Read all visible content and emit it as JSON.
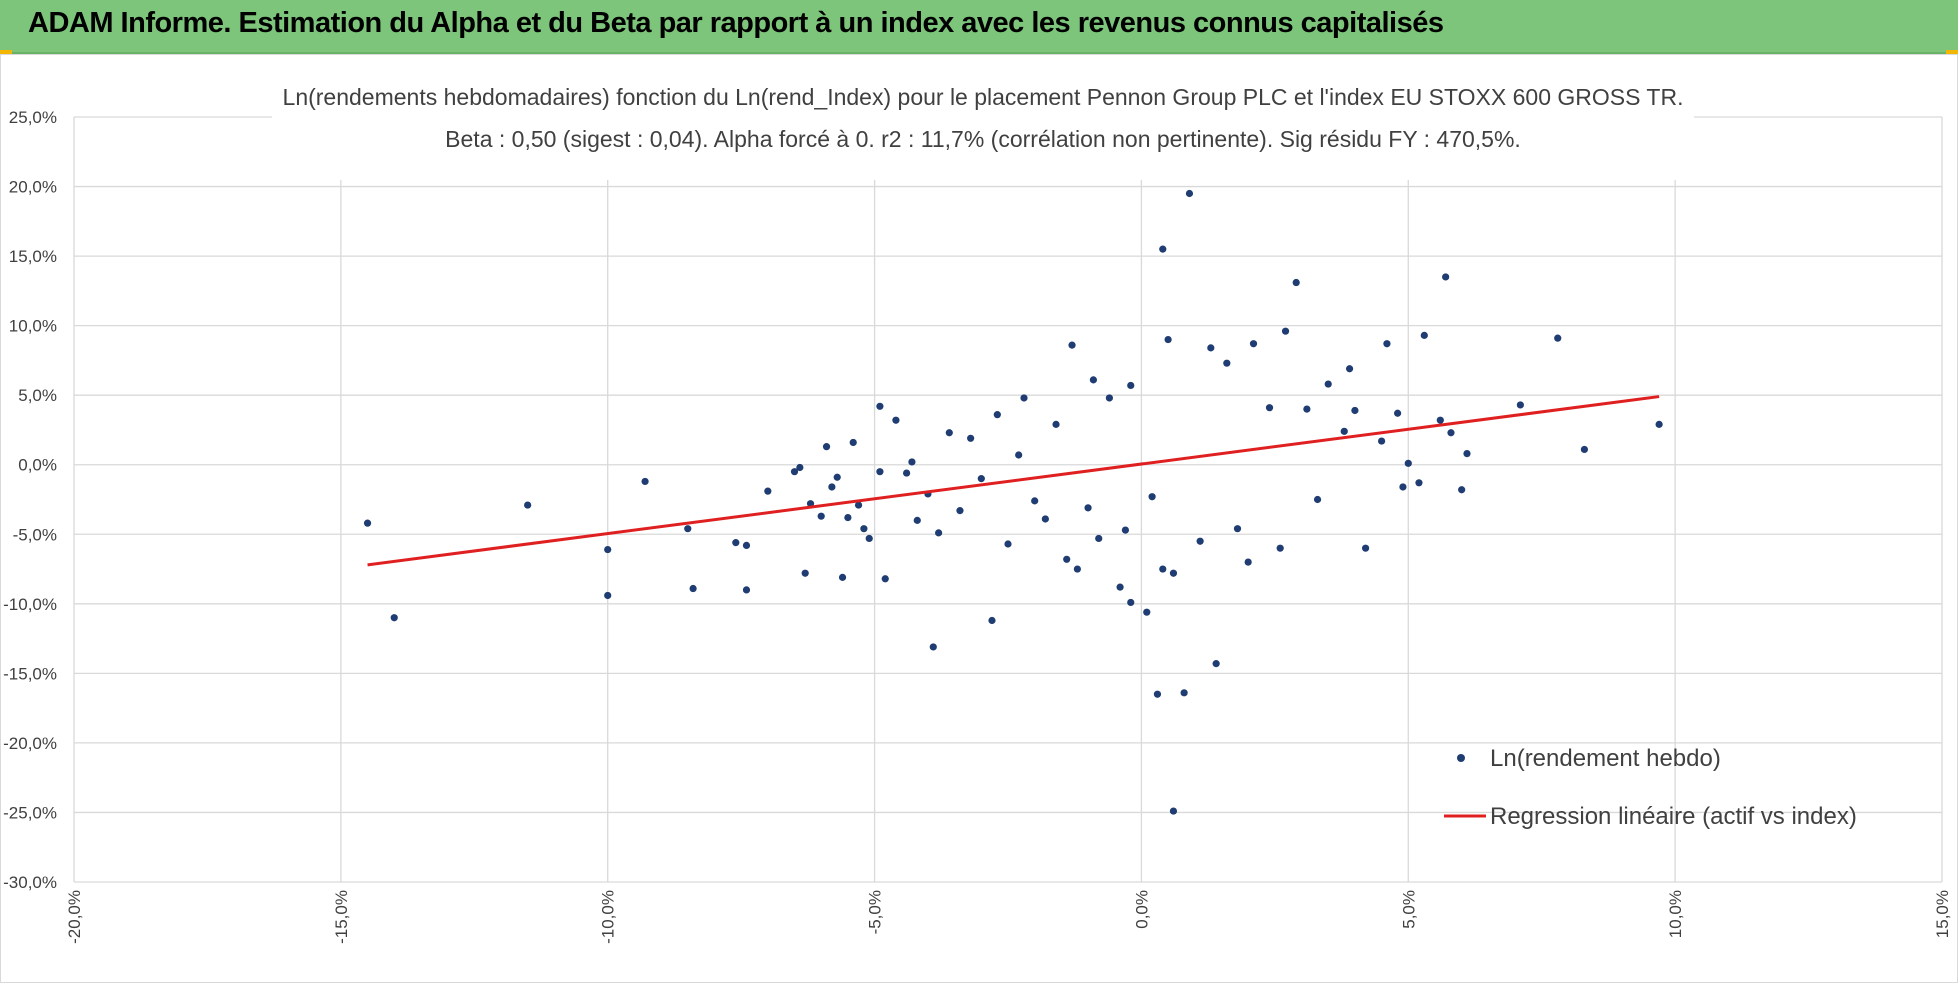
{
  "banner": {
    "title": "ADAM Informe. Estimation du Alpha et du Beta par rapport à un index avec les revenus connus capitalisés",
    "color": "#7dc57a"
  },
  "chart_data": {
    "type": "scatter",
    "title": "Ln(rendements hebdomadaires) fonction du Ln(rend_Index) pour le placement Pennon Group PLC et l'index EU STOXX 600 GROSS TR.",
    "subtitle": "Beta : 0,50 (sigest : 0,04).  Alpha forcé à 0. r2 : 11,7% (corrélation non pertinente). Sig résidu FY : 470,5%.",
    "xlabel": "",
    "ylabel": "",
    "xlim": [
      -20,
      15
    ],
    "ylim": [
      -30,
      25
    ],
    "x_ticks": [
      "-20,0%",
      "-15,0%",
      "-10,0%",
      "-5,0%",
      "0,0%",
      "5,0%",
      "10,0%",
      "15,0%"
    ],
    "y_ticks": [
      "25,0%",
      "20,0%",
      "15,0%",
      "10,0%",
      "5,0%",
      "0,0%",
      "-5,0%",
      "-10,0%",
      "-15,0%",
      "-20,0%",
      "-25,0%",
      "-30,0%"
    ],
    "grid": true,
    "legend_position": "bottom-right",
    "series": [
      {
        "name": "Ln(rendement hebdo)",
        "kind": "scatter",
        "color": "#1f3d73",
        "points": [
          [
            -14.5,
            -4.2
          ],
          [
            -14.0,
            -11.0
          ],
          [
            -11.5,
            -2.9
          ],
          [
            -10.0,
            -9.4
          ],
          [
            -10.0,
            -6.1
          ],
          [
            -9.3,
            -1.2
          ],
          [
            -8.5,
            -4.6
          ],
          [
            -8.4,
            -8.9
          ],
          [
            -7.6,
            -5.6
          ],
          [
            -7.4,
            -5.8
          ],
          [
            -7.4,
            -9.0
          ],
          [
            -7.0,
            -1.9
          ],
          [
            -6.5,
            -0.5
          ],
          [
            -6.4,
            -0.2
          ],
          [
            -6.3,
            -7.8
          ],
          [
            -6.2,
            -2.8
          ],
          [
            -6.0,
            -3.7
          ],
          [
            -5.9,
            1.3
          ],
          [
            -5.8,
            -1.6
          ],
          [
            -5.7,
            -0.9
          ],
          [
            -5.6,
            -8.1
          ],
          [
            -5.5,
            -3.8
          ],
          [
            -5.4,
            1.6
          ],
          [
            -5.3,
            -2.9
          ],
          [
            -5.2,
            -4.6
          ],
          [
            -5.1,
            -5.3
          ],
          [
            -4.9,
            4.2
          ],
          [
            -4.9,
            -0.5
          ],
          [
            -4.8,
            -8.2
          ],
          [
            -4.6,
            3.2
          ],
          [
            -4.4,
            -0.6
          ],
          [
            -4.3,
            0.2
          ],
          [
            -4.2,
            -4.0
          ],
          [
            -4.0,
            -2.1
          ],
          [
            -3.9,
            -13.1
          ],
          [
            -3.8,
            -4.9
          ],
          [
            -3.6,
            2.3
          ],
          [
            -3.4,
            -3.3
          ],
          [
            -3.2,
            1.9
          ],
          [
            -3.0,
            -1.0
          ],
          [
            -2.8,
            -11.2
          ],
          [
            -2.7,
            3.6
          ],
          [
            -2.5,
            -5.7
          ],
          [
            -2.3,
            0.7
          ],
          [
            -2.2,
            4.8
          ],
          [
            -2.0,
            -2.6
          ],
          [
            -1.8,
            -3.9
          ],
          [
            -1.6,
            2.9
          ],
          [
            -1.4,
            -6.8
          ],
          [
            -1.3,
            8.6
          ],
          [
            -1.2,
            -7.5
          ],
          [
            -1.0,
            -3.1
          ],
          [
            -0.9,
            6.1
          ],
          [
            -0.8,
            -5.3
          ],
          [
            -0.6,
            4.8
          ],
          [
            -0.4,
            -8.8
          ],
          [
            -0.3,
            -4.7
          ],
          [
            -0.2,
            5.7
          ],
          [
            -0.2,
            -9.9
          ],
          [
            0.1,
            -10.6
          ],
          [
            0.2,
            -2.3
          ],
          [
            0.3,
            -16.5
          ],
          [
            0.4,
            15.5
          ],
          [
            0.4,
            -7.5
          ],
          [
            0.5,
            9.0
          ],
          [
            0.6,
            -24.9
          ],
          [
            0.6,
            -7.8
          ],
          [
            0.8,
            -16.4
          ],
          [
            0.9,
            19.5
          ],
          [
            1.1,
            -5.5
          ],
          [
            1.3,
            8.4
          ],
          [
            1.4,
            -14.3
          ],
          [
            1.6,
            7.3
          ],
          [
            1.8,
            -4.6
          ],
          [
            2.0,
            -7.0
          ],
          [
            2.1,
            8.7
          ],
          [
            2.4,
            4.1
          ],
          [
            2.6,
            -6.0
          ],
          [
            2.7,
            9.6
          ],
          [
            2.9,
            13.1
          ],
          [
            3.1,
            4.0
          ],
          [
            3.3,
            -2.5
          ],
          [
            3.5,
            5.8
          ],
          [
            3.8,
            2.4
          ],
          [
            3.9,
            6.9
          ],
          [
            4.0,
            3.9
          ],
          [
            4.2,
            -6.0
          ],
          [
            4.5,
            1.7
          ],
          [
            4.6,
            8.7
          ],
          [
            4.8,
            3.7
          ],
          [
            4.9,
            -1.6
          ],
          [
            5.0,
            0.1
          ],
          [
            5.2,
            -1.3
          ],
          [
            5.3,
            9.3
          ],
          [
            5.6,
            3.2
          ],
          [
            5.7,
            13.5
          ],
          [
            5.8,
            2.3
          ],
          [
            6.0,
            -1.8
          ],
          [
            6.1,
            0.8
          ],
          [
            7.1,
            4.3
          ],
          [
            7.8,
            9.1
          ],
          [
            8.3,
            1.1
          ],
          [
            9.7,
            2.9
          ]
        ]
      },
      {
        "name": "Regression linéaire (actif vs index)",
        "kind": "line",
        "color": "#e02020",
        "points": [
          [
            -14.5,
            -7.2
          ],
          [
            9.7,
            4.9
          ]
        ]
      }
    ]
  }
}
